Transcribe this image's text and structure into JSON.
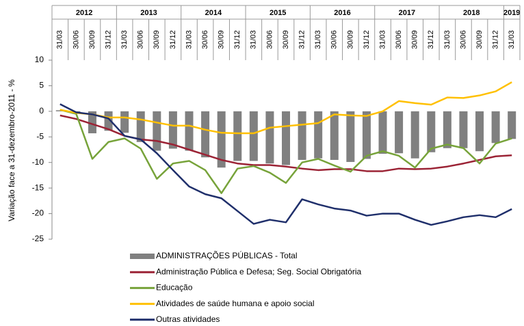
{
  "chart_data": {
    "type": "bar-line",
    "y_label": "Variação face a 31-dezembro-2011 - %",
    "years": [
      "2012",
      "2013",
      "2014",
      "2015",
      "2016",
      "2017",
      "2018",
      "2019"
    ],
    "categories": [
      "31/03",
      "30/06",
      "30/09",
      "31/12",
      "31/03",
      "30/06",
      "30/09",
      "31/12",
      "31/03",
      "30/06",
      "30/09",
      "31/12",
      "31/03",
      "30/06",
      "30/09",
      "31/12",
      "31/03",
      "30/06",
      "30/09",
      "31/12",
      "31/03",
      "30/06",
      "30/09",
      "31/12",
      "31/03",
      "30/06",
      "30/09",
      "31/12",
      "31/03"
    ],
    "ylim": [
      -25,
      10
    ],
    "yticks": [
      -25,
      -20,
      -15,
      -10,
      -5,
      0,
      5,
      10
    ],
    "series": [
      {
        "name": "ADMINISTRAÇÕES PÚBLICAS - Total",
        "type": "bar",
        "color": "#808080",
        "values": [
          0.2,
          -0.5,
          -4.3,
          -3.8,
          -4.2,
          -6,
          -7.7,
          -7.3,
          -7.7,
          -9,
          -11,
          -9.7,
          -9.7,
          -10.2,
          -10.5,
          -9.5,
          -9.2,
          -9.5,
          -9.9,
          -9.3,
          -8.3,
          -8.2,
          -9.2,
          -8,
          -7.2,
          -7.2,
          -7.8,
          -6.2,
          -5.4
        ]
      },
      {
        "name": "Administração Pública e Defesa; Seg. Social Obrigatória",
        "type": "line",
        "color": "#9b2335",
        "values": [
          -0.8,
          -1.5,
          -2.5,
          -3.5,
          -4.8,
          -5.5,
          -5.8,
          -6.5,
          -7.5,
          -8.5,
          -9.5,
          -10.2,
          -10.5,
          -10.5,
          -10.8,
          -11.2,
          -11.5,
          -11.3,
          -11.3,
          -11.7,
          -11.7,
          -11.2,
          -11.3,
          -11.2,
          -10.8,
          -10.2,
          -9.5,
          -8.8,
          -8.6
        ]
      },
      {
        "name": "Educação",
        "type": "line",
        "color": "#77a33a",
        "values": [
          0.3,
          -0.5,
          -9.3,
          -6,
          -5.3,
          -7.3,
          -13.2,
          -10.2,
          -9.7,
          -11.5,
          -16,
          -11.2,
          -10.7,
          -12,
          -14,
          -10,
          -9.3,
          -10.6,
          -11.8,
          -8.7,
          -7.8,
          -8.7,
          -11,
          -7.3,
          -6.5,
          -7.2,
          -10.2,
          -6.3,
          -5.3
        ]
      },
      {
        "name": "Atividades de saúde humana e apoio social",
        "type": "line",
        "color": "#ffc000",
        "values": [
          0.3,
          -0.3,
          -0.6,
          -1.2,
          -1.2,
          -1.6,
          -2.2,
          -2.8,
          -2.8,
          -3.6,
          -4.2,
          -4.3,
          -4.3,
          -3.2,
          -2.9,
          -2.6,
          -2.3,
          -0.6,
          -0.8,
          -0.9,
          0.0,
          2.0,
          1.6,
          1.3,
          2.7,
          2.6,
          3.1,
          3.9,
          5.7
        ]
      },
      {
        "name": "Outras atividades",
        "type": "line",
        "color": "#1f2f6b",
        "values": [
          1.4,
          -0.2,
          -0.6,
          -1.4,
          -4.8,
          -5.5,
          -8.2,
          -11.5,
          -14.7,
          -16.2,
          -17,
          -19.5,
          -22,
          -21.2,
          -21.7,
          -17.2,
          -18.2,
          -19,
          -19.4,
          -20.4,
          -20,
          -20,
          -21.2,
          -22.2,
          -21.5,
          -20.7,
          -20.3,
          -20.7,
          -19.1
        ]
      }
    ]
  }
}
